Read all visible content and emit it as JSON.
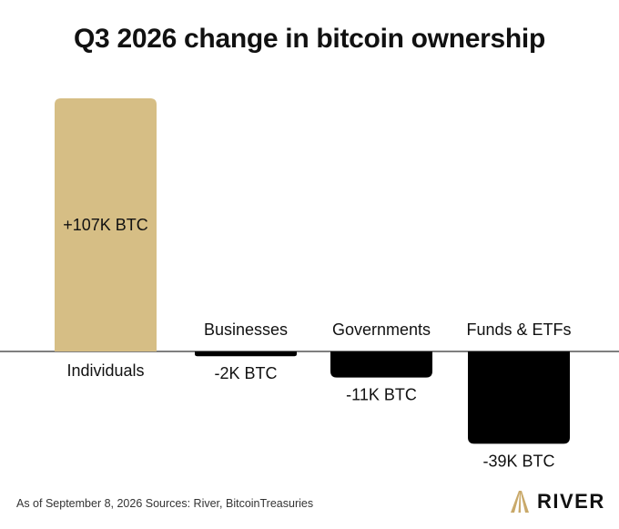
{
  "chart_data": {
    "type": "bar",
    "title": "Q3 2026 change in bitcoin ownership",
    "unit": "BTC",
    "categories": [
      "Individuals",
      "Businesses",
      "Governments",
      "Funds & ETFs"
    ],
    "values": [
      107000,
      -2000,
      -11000,
      -39000
    ],
    "value_labels": [
      "+107K BTC",
      "-2K BTC",
      "-11K BTC",
      "-39K BTC"
    ],
    "colors": {
      "positive": "#d6be85",
      "negative": "#000000",
      "baseline": "#333333"
    },
    "grid": false,
    "legend": "none"
  },
  "footer": {
    "note": "As of September 8, 2026 Sources: River, BitcoinTreasuries"
  },
  "brand": {
    "name": "RIVER",
    "logo_icon": "river-mountain-icon",
    "logo_color": "#c9a96a"
  }
}
